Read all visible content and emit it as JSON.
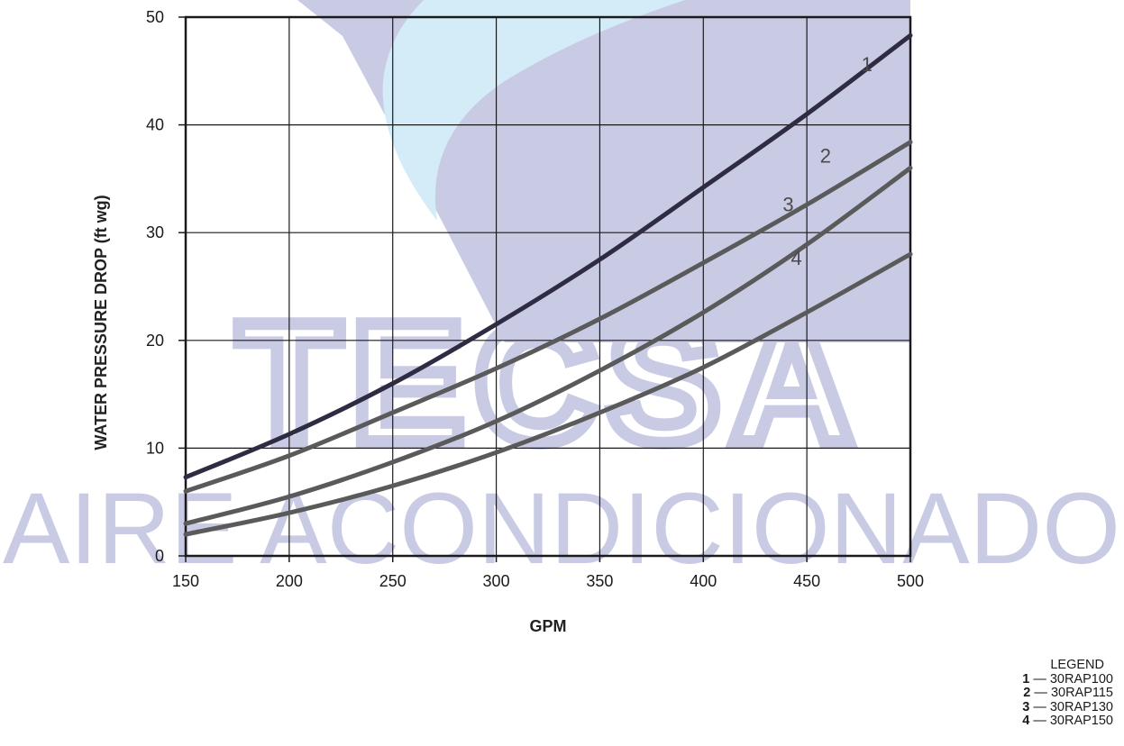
{
  "watermark": {
    "text_top": "TECSA",
    "text_bottom": "AIRE ACONDICIONADO"
  },
  "colors": {
    "curve_1": "#2e2b42",
    "curve_other": "#5a5a5a",
    "grid": "#1a1a1a",
    "watermark_blue": "#c9cbe4",
    "watermark_light": "#d4ecf7"
  },
  "chart_data": {
    "type": "line",
    "title": "",
    "xlabel": "GPM",
    "ylabel": "WATER PRESSURE DROP (ft wg)",
    "xlim": [
      150,
      500
    ],
    "ylim": [
      0,
      50
    ],
    "xticks": [
      "150",
      "200",
      "250",
      "300",
      "350",
      "400",
      "450",
      "500"
    ],
    "yticks": [
      "0",
      "10",
      "20",
      "30",
      "40",
      "50"
    ],
    "grid": true,
    "legend_position": "bottom-right",
    "x": [
      150,
      200,
      250,
      300,
      350,
      400,
      450,
      500
    ],
    "series": [
      {
        "name": "1",
        "values": [
          7.3,
          11.3,
          16.0,
          21.5,
          27.5,
          34.2,
          41.0,
          48.3
        ]
      },
      {
        "name": "2",
        "values": [
          6.0,
          9.3,
          13.3,
          17.4,
          22.0,
          27.2,
          32.6,
          38.4
        ]
      },
      {
        "name": "3",
        "values": [
          3.0,
          5.5,
          8.7,
          12.5,
          17.2,
          22.6,
          28.9,
          36.0
        ]
      },
      {
        "name": "4",
        "values": [
          2.0,
          4.0,
          6.5,
          9.6,
          13.3,
          17.5,
          22.6,
          28.0
        ]
      }
    ]
  },
  "legend": {
    "title": "LEGEND",
    "items": [
      {
        "num": "1",
        "sep": " — ",
        "text": "30RAP100"
      },
      {
        "num": "2",
        "sep": " — ",
        "text": "30RAP115"
      },
      {
        "num": "3",
        "sep": " — ",
        "text": "30RAP130"
      },
      {
        "num": "4",
        "sep": " — ",
        "text": "30RAP150"
      }
    ]
  }
}
